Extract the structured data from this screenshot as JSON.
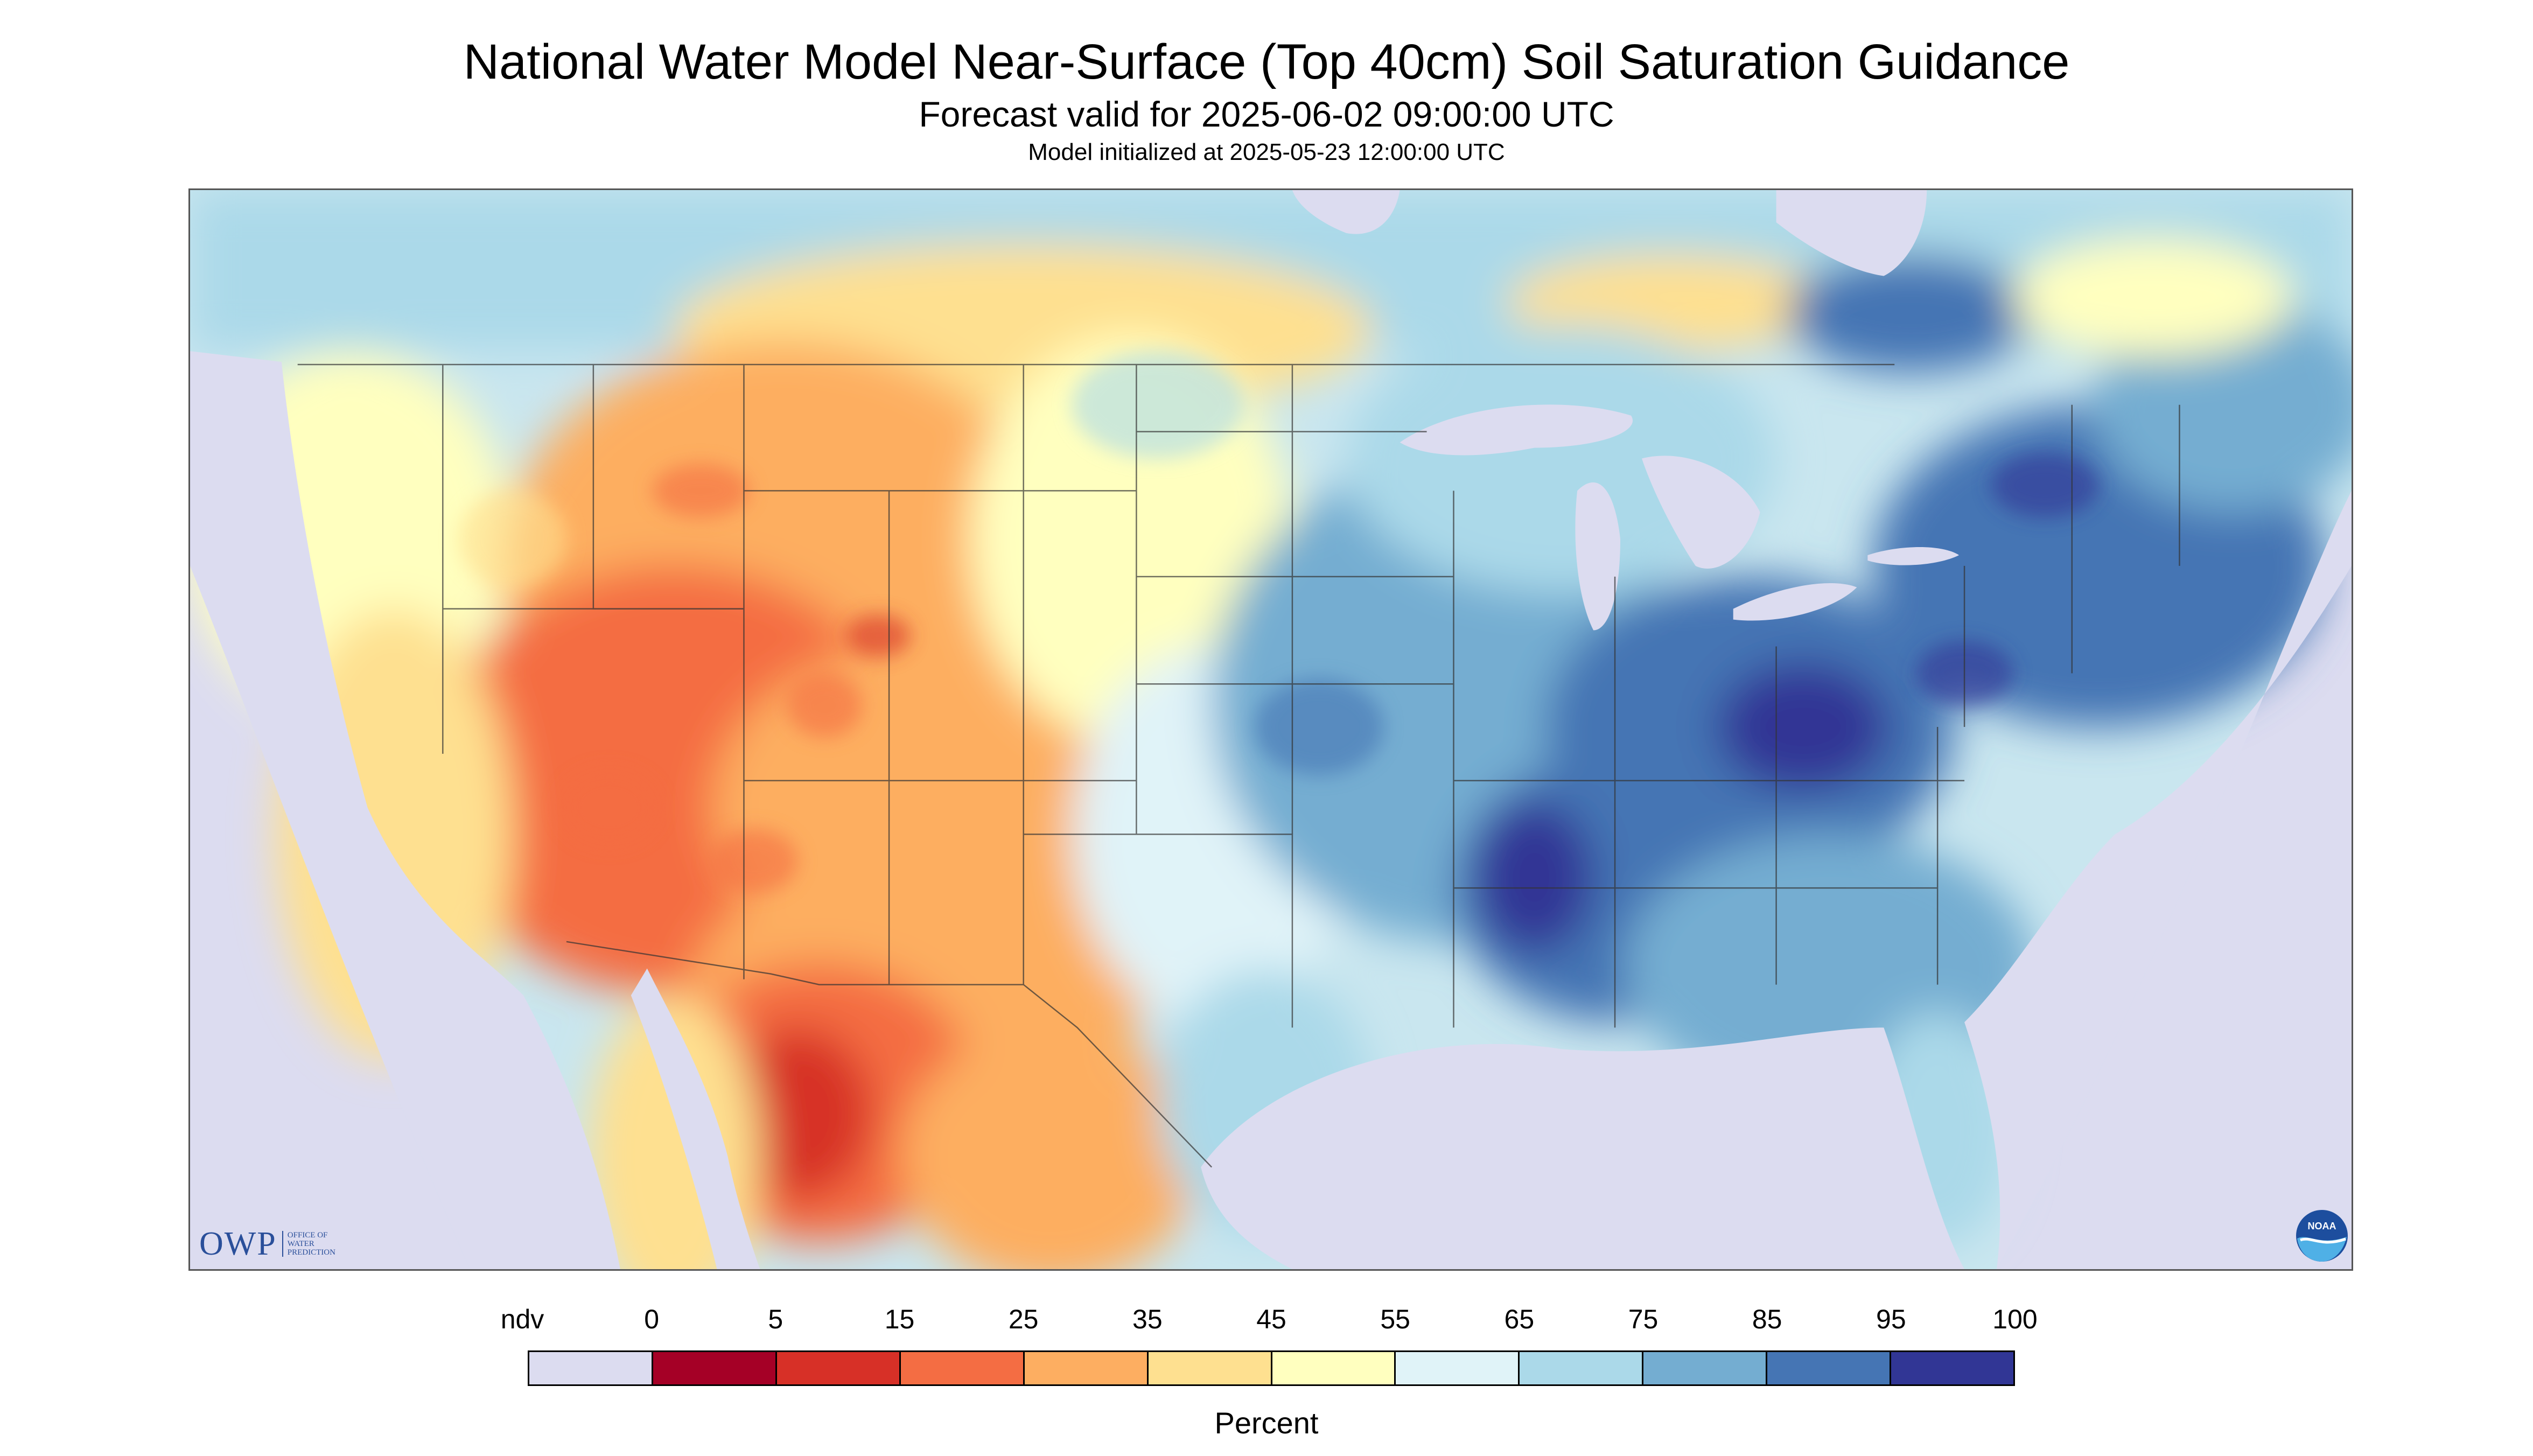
{
  "title": "National Water Model Near-Surface (Top 40cm) Soil Saturation Guidance",
  "subtitle": "Forecast valid for 2025-06-02 09:00:00 UTC",
  "init_line": "Model initialized at 2025-05-23 12:00:00 UTC",
  "map": {
    "region": "Contiguous United States with southern Canada and northern Mexico",
    "no_data_color": "#dcdcf0",
    "regions": [
      {
        "name": "southwest-dry",
        "value_range": [
          5,
          35
        ]
      },
      {
        "name": "mexico-sonora-very-dry",
        "value_range": [
          0,
          15
        ]
      },
      {
        "name": "intermountain-west-dry",
        "value_range": [
          15,
          45
        ]
      },
      {
        "name": "great-plains-mixed",
        "value_range": [
          45,
          65
        ]
      },
      {
        "name": "midwest-moist",
        "value_range": [
          65,
          85
        ]
      },
      {
        "name": "ohio-tennessee-valley-wet",
        "value_range": [
          85,
          100
        ]
      },
      {
        "name": "northeast-wet",
        "value_range": [
          75,
          95
        ]
      },
      {
        "name": "southeast-moist",
        "value_range": [
          65,
          85
        ]
      },
      {
        "name": "canadian-prairies-dry",
        "value_range": [
          35,
          55
        ]
      }
    ]
  },
  "logos": {
    "owp": {
      "text": "OWP",
      "sub": [
        "OFFICE OF",
        "WATER",
        "PREDICTION"
      ]
    },
    "noaa": {
      "text": "NOAA"
    }
  },
  "colorbar": {
    "label": "Percent",
    "tick_labels": [
      "ndv",
      "0",
      "5",
      "15",
      "25",
      "35",
      "45",
      "55",
      "65",
      "75",
      "85",
      "95",
      "100"
    ],
    "colors": [
      "#dcdcf0",
      "#a50026",
      "#d73027",
      "#f46d43",
      "#fdae61",
      "#fee090",
      "#ffffbf",
      "#e0f3f8",
      "#abd9e9",
      "#74add1",
      "#4575b4",
      "#313695"
    ]
  }
}
